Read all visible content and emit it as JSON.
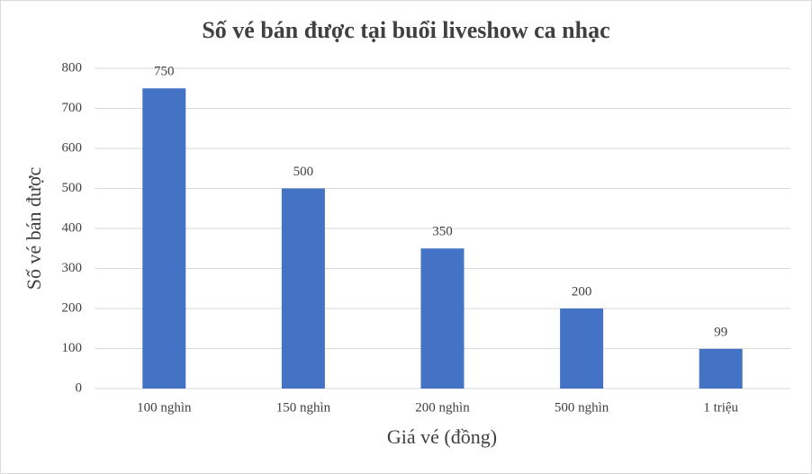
{
  "chart_data": {
    "type": "bar",
    "title": "Số vé bán được tại buổi liveshow ca nhạc",
    "x_label": "Giá vé (đồng)",
    "y_label": "Số vé bán được",
    "categories": [
      "100 nghìn",
      "150 nghìn",
      "200 nghìn",
      "500 nghìn",
      "1 triệu"
    ],
    "values": [
      750,
      500,
      350,
      200,
      99
    ],
    "color": "#4472c4",
    "ylim": [
      0,
      800
    ],
    "yticks": [
      0,
      100,
      200,
      300,
      400,
      500,
      600,
      700,
      800
    ],
    "grid": true
  }
}
